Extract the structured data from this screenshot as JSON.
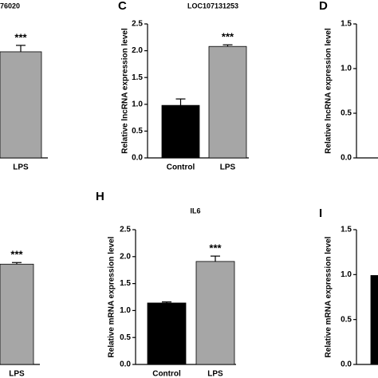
{
  "chart_data": [
    {
      "type": "bar",
      "title": "76020",
      "categories": [
        "LPS"
      ],
      "values": [
        1.98
      ],
      "errors": [
        0.12
      ],
      "colors": [
        "#a6a6a6"
      ],
      "ylim": [
        0,
        2.5
      ],
      "annotations": [
        "***"
      ]
    },
    {
      "type": "bar",
      "label": "C",
      "title": "LOC107131253",
      "ylabel": "Relative lncRNA expression level",
      "categories": [
        "Control",
        "LPS"
      ],
      "values": [
        0.98,
        2.08
      ],
      "errors": [
        0.12,
        0.03
      ],
      "colors": [
        "#000000",
        "#a6a6a6"
      ],
      "ylim": [
        0,
        2.5
      ],
      "yticks": [
        {
          "value": 0,
          "label": "0.0"
        },
        {
          "value": 0.5,
          "label": "0.5"
        },
        {
          "value": 1,
          "label": "1.0"
        },
        {
          "value": 1.5,
          "label": "1.5"
        },
        {
          "value": 2,
          "label": "2.0"
        },
        {
          "value": 2.5,
          "label": "2.5"
        }
      ],
      "annotations": [
        "***"
      ]
    },
    {
      "type": "bar",
      "label": "D",
      "ylabel": "Relative lncRNA expression level",
      "ylim": [
        0,
        1.5
      ],
      "yticks": [
        {
          "value": 0,
          "label": "0.0"
        },
        {
          "value": 0.5,
          "label": "0.5"
        },
        {
          "value": 1,
          "label": "1.0"
        },
        {
          "value": 1.5,
          "label": "1.5"
        }
      ]
    },
    {
      "type": "bar",
      "categories": [
        "LPS"
      ],
      "values": [
        1.86
      ],
      "errors": [
        0.03
      ],
      "colors": [
        "#a6a6a6"
      ],
      "ylim": [
        0,
        2.5
      ],
      "annotations": [
        "***"
      ]
    },
    {
      "type": "bar",
      "label": "H",
      "title": "IL6",
      "ylabel": "Relative mRNA expression level",
      "categories": [
        "Control",
        "LPS"
      ],
      "values": [
        1.14,
        1.91
      ],
      "errors": [
        0.02,
        0.1
      ],
      "colors": [
        "#000000",
        "#a6a6a6"
      ],
      "ylim": [
        0,
        2.5
      ],
      "yticks": [
        {
          "value": 0,
          "label": "0.0"
        },
        {
          "value": 0.5,
          "label": "0.5"
        },
        {
          "value": 1,
          "label": "1.0"
        },
        {
          "value": 1.5,
          "label": "1.5"
        },
        {
          "value": 2,
          "label": "2.0"
        },
        {
          "value": 2.5,
          "label": "2.5"
        }
      ],
      "annotations": [
        "***"
      ]
    },
    {
      "type": "bar",
      "label": "I",
      "ylabel": "Relative mRNA expression level",
      "categories": [
        null
      ],
      "values": [
        0.99
      ],
      "colors": [
        "#000000"
      ],
      "ylim": [
        0,
        1.5
      ],
      "yticks": [
        {
          "value": 0,
          "label": "0.0"
        },
        {
          "value": 0.5,
          "label": "0.5"
        },
        {
          "value": 1,
          "label": "1.0"
        },
        {
          "value": 1.5,
          "label": "1.5"
        }
      ]
    }
  ]
}
